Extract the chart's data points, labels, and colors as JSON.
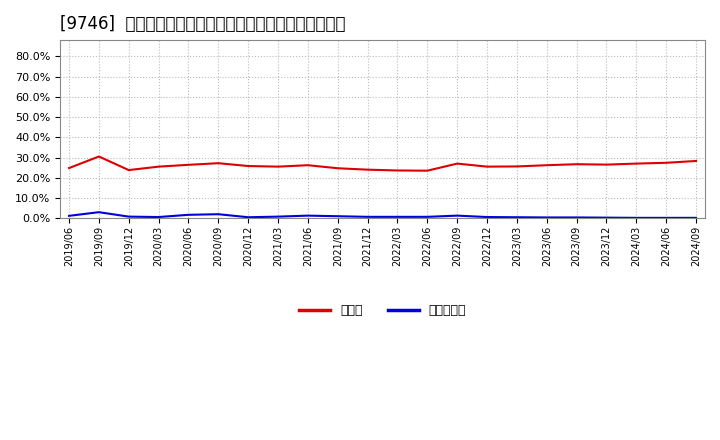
{
  "title": "[9746]  現頲金、有利子負債の総資産に対する比率の推移",
  "x_labels": [
    "2019/06",
    "2019/09",
    "2019/12",
    "2020/03",
    "2020/06",
    "2020/09",
    "2020/12",
    "2021/03",
    "2021/06",
    "2021/09",
    "2021/12",
    "2022/03",
    "2022/06",
    "2022/09",
    "2022/12",
    "2023/03",
    "2023/06",
    "2023/09",
    "2023/12",
    "2024/03",
    "2024/06",
    "2024/09"
  ],
  "cash_values": [
    0.248,
    0.305,
    0.238,
    0.255,
    0.264,
    0.272,
    0.258,
    0.255,
    0.262,
    0.247,
    0.24,
    0.236,
    0.235,
    0.27,
    0.255,
    0.256,
    0.262,
    0.267,
    0.265,
    0.27,
    0.274,
    0.283
  ],
  "debt_values": [
    0.012,
    0.03,
    0.008,
    0.006,
    0.017,
    0.02,
    0.005,
    0.008,
    0.013,
    0.01,
    0.007,
    0.007,
    0.007,
    0.013,
    0.006,
    0.005,
    0.004,
    0.004,
    0.003,
    0.002,
    0.002,
    0.002
  ],
  "cash_color": "#dd0000",
  "debt_color": "#0000dd",
  "ylim": [
    0.0,
    0.88
  ],
  "yticks": [
    0.0,
    0.1,
    0.2,
    0.3,
    0.4,
    0.5,
    0.6,
    0.7,
    0.8
  ],
  "legend_cash": "現頲金",
  "legend_debt": "有利子負債",
  "background_color": "#ffffff",
  "plot_bg_color": "#ffffff",
  "grid_color": "#bbbbbb",
  "title_fontsize": 12
}
